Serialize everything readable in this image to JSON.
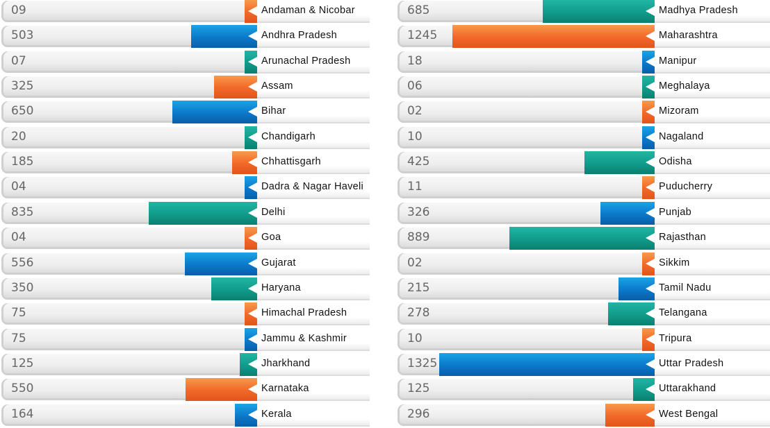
{
  "chart_data": {
    "type": "bar",
    "orientation": "horizontal",
    "series": [
      {
        "rows": [
          {
            "category": "Andaman & Nicobar",
            "label": "09",
            "value": 9,
            "color": "orange"
          },
          {
            "category": "Andhra Pradesh",
            "label": "503",
            "value": 503,
            "color": "blue"
          },
          {
            "category": "Arunachal Pradesh",
            "label": "07",
            "value": 7,
            "color": "teal"
          },
          {
            "category": "Assam",
            "label": "325",
            "value": 325,
            "color": "orange"
          },
          {
            "category": "Bihar",
            "label": "650",
            "value": 650,
            "color": "blue"
          },
          {
            "category": "Chandigarh",
            "label": "20",
            "value": 20,
            "color": "teal"
          },
          {
            "category": "Chhattisgarh",
            "label": "185",
            "value": 185,
            "color": "orange"
          },
          {
            "category": "Dadra & Nagar Haveli",
            "label": "04",
            "value": 4,
            "color": "blue"
          },
          {
            "category": "Delhi",
            "label": "835",
            "value": 835,
            "color": "teal"
          },
          {
            "category": "Goa",
            "label": "04",
            "value": 4,
            "color": "orange"
          },
          {
            "category": "Gujarat",
            "label": "556",
            "value": 556,
            "color": "blue"
          },
          {
            "category": "Haryana",
            "label": "350",
            "value": 350,
            "color": "teal"
          },
          {
            "category": "Himachal Pradesh",
            "label": "75",
            "value": 75,
            "color": "orange"
          },
          {
            "category": "Jammu & Kashmir",
            "label": "75",
            "value": 75,
            "color": "blue"
          },
          {
            "category": "Jharkhand",
            "label": "125",
            "value": 125,
            "color": "teal"
          },
          {
            "category": "Karnataka",
            "label": "550",
            "value": 550,
            "color": "orange"
          },
          {
            "category": "Kerala",
            "label": "164",
            "value": 164,
            "color": "blue"
          }
        ]
      },
      {
        "rows": [
          {
            "category": "Madhya Pradesh",
            "label": "685",
            "value": 685,
            "color": "teal"
          },
          {
            "category": "Maharashtra",
            "label": "1245",
            "value": 1245,
            "color": "orange"
          },
          {
            "category": "Manipur",
            "label": "18",
            "value": 18,
            "color": "blue"
          },
          {
            "category": "Meghalaya",
            "label": "06",
            "value": 6,
            "color": "teal"
          },
          {
            "category": "Mizoram",
            "label": "02",
            "value": 2,
            "color": "orange"
          },
          {
            "category": "Nagaland",
            "label": "10",
            "value": 10,
            "color": "blue"
          },
          {
            "category": "Odisha",
            "label": "425",
            "value": 425,
            "color": "teal"
          },
          {
            "category": "Puducherry",
            "label": "11",
            "value": 11,
            "color": "orange"
          },
          {
            "category": "Punjab",
            "label": "326",
            "value": 326,
            "color": "blue"
          },
          {
            "category": "Rajasthan",
            "label": "889",
            "value": 889,
            "color": "teal"
          },
          {
            "category": "Sikkim",
            "label": "02",
            "value": 2,
            "color": "orange"
          },
          {
            "category": "Tamil Nadu",
            "label": "215",
            "value": 215,
            "color": "blue"
          },
          {
            "category": "Telangana",
            "label": "278",
            "value": 278,
            "color": "teal"
          },
          {
            "category": "Tripura",
            "label": "10",
            "value": 10,
            "color": "orange"
          },
          {
            "category": "Uttar Pradesh",
            "label": "1325",
            "value": 1325,
            "color": "blue"
          },
          {
            "category": "Uttarakhand",
            "label": "125",
            "value": 125,
            "color": "teal"
          },
          {
            "category": "West Bengal",
            "label": "296",
            "value": 296,
            "color": "orange"
          }
        ]
      }
    ],
    "xlim": [
      0,
      1325
    ],
    "grid": false,
    "legend": "none"
  },
  "colors": {
    "orange": "#f26b2a",
    "blue": "#0b78c9",
    "teal": "#119b8a"
  }
}
